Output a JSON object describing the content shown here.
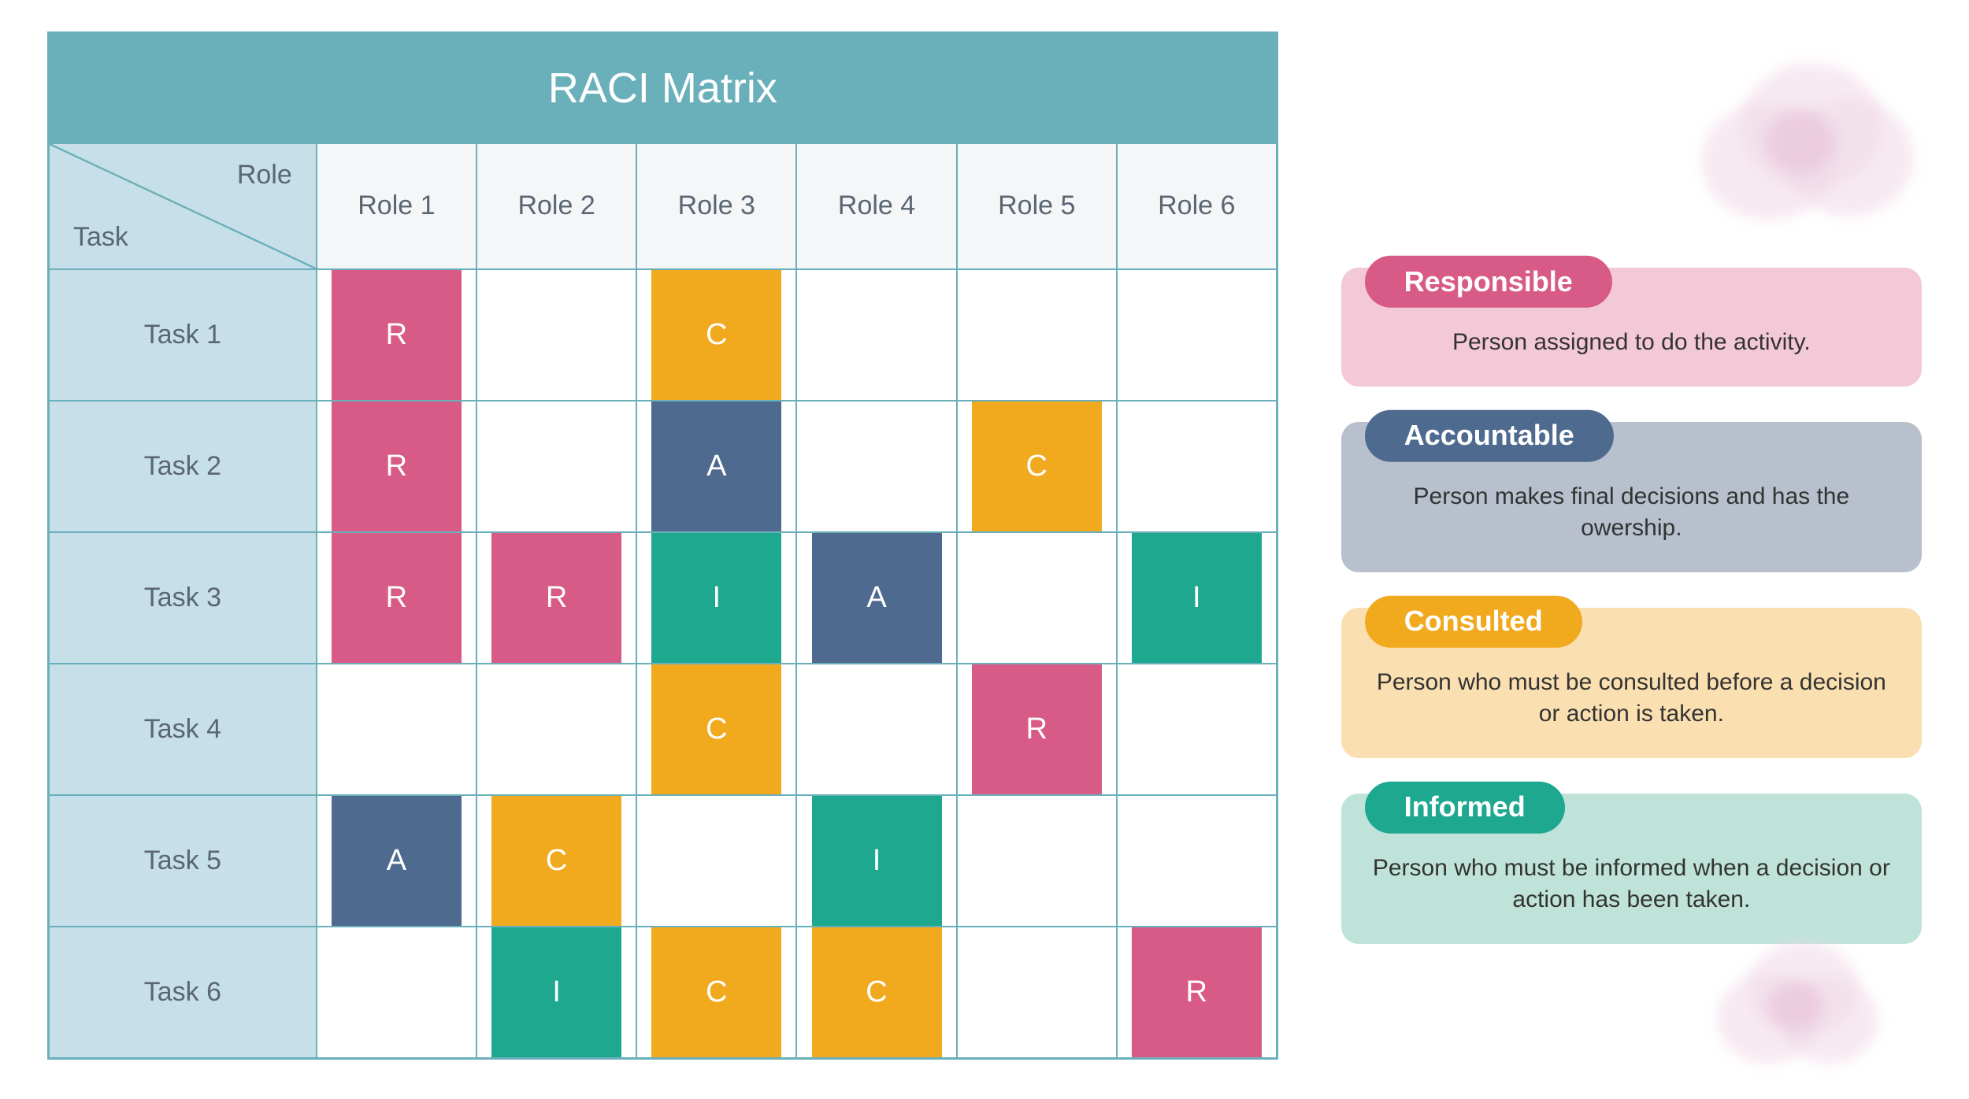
{
  "matrix": {
    "title": "RACI Matrix",
    "header_role_label": "Role",
    "header_task_label": "Task",
    "roles": [
      "Role 1",
      "Role 2",
      "Role 3",
      "Role 4",
      "Role 5",
      "Role 6"
    ],
    "tasks": [
      "Task 1",
      "Task 2",
      "Task 3",
      "Task 4",
      "Task 5",
      "Task 6"
    ],
    "cells": [
      [
        "R",
        "",
        "C",
        "",
        "",
        ""
      ],
      [
        "R",
        "",
        "A",
        "",
        "C",
        ""
      ],
      [
        "R",
        "R",
        "I",
        "A",
        "",
        "I"
      ],
      [
        "",
        "",
        "C",
        "",
        "R",
        ""
      ],
      [
        "A",
        "C",
        "",
        "I",
        "",
        ""
      ],
      [
        "",
        "I",
        "C",
        "C",
        "",
        "R"
      ]
    ],
    "title_bg": "#6ab0bb",
    "title_color": "#ffffff",
    "border_color": "#6ab0bb",
    "header_bg": "#f4f6f7",
    "task_col_bg": "#c6dfe8",
    "task_col_text": "#5a6673",
    "header_text": "#5a6673",
    "cell_bg_empty": "#ffffff"
  },
  "codes": {
    "R": {
      "label": "R",
      "color": "#d85a86"
    },
    "A": {
      "label": "A",
      "color": "#4f6a8f"
    },
    "C": {
      "label": "C",
      "color": "#f1a91e"
    },
    "I": {
      "label": "I",
      "color": "#1fa890"
    }
  },
  "legend": {
    "items": [
      {
        "key": "R",
        "badge": "Responsible",
        "desc": "Person assigned to do the activity.",
        "badge_bg": "#d85a86",
        "panel_bg": "#f3c9d7"
      },
      {
        "key": "A",
        "badge": "Accountable",
        "desc": "Person makes final decisions and has the owership.",
        "badge_bg": "#4f6a8f",
        "panel_bg": "#b7c0cc"
      },
      {
        "key": "C",
        "badge": "Consulted",
        "desc": "Person who must be consulted before a decision or action is taken.",
        "badge_bg": "#f1a91e",
        "panel_bg": "#fadfb0"
      },
      {
        "key": "I",
        "badge": "Informed",
        "desc": "Person who must be informed when a decision or action has been taken.",
        "badge_bg": "#1fa890",
        "panel_bg": "#bfe3d9"
      }
    ]
  },
  "decor": {
    "flower_color": "#f0d9e7",
    "flower_center": "#e7bfd6",
    "flower_alpha": 0.55
  }
}
